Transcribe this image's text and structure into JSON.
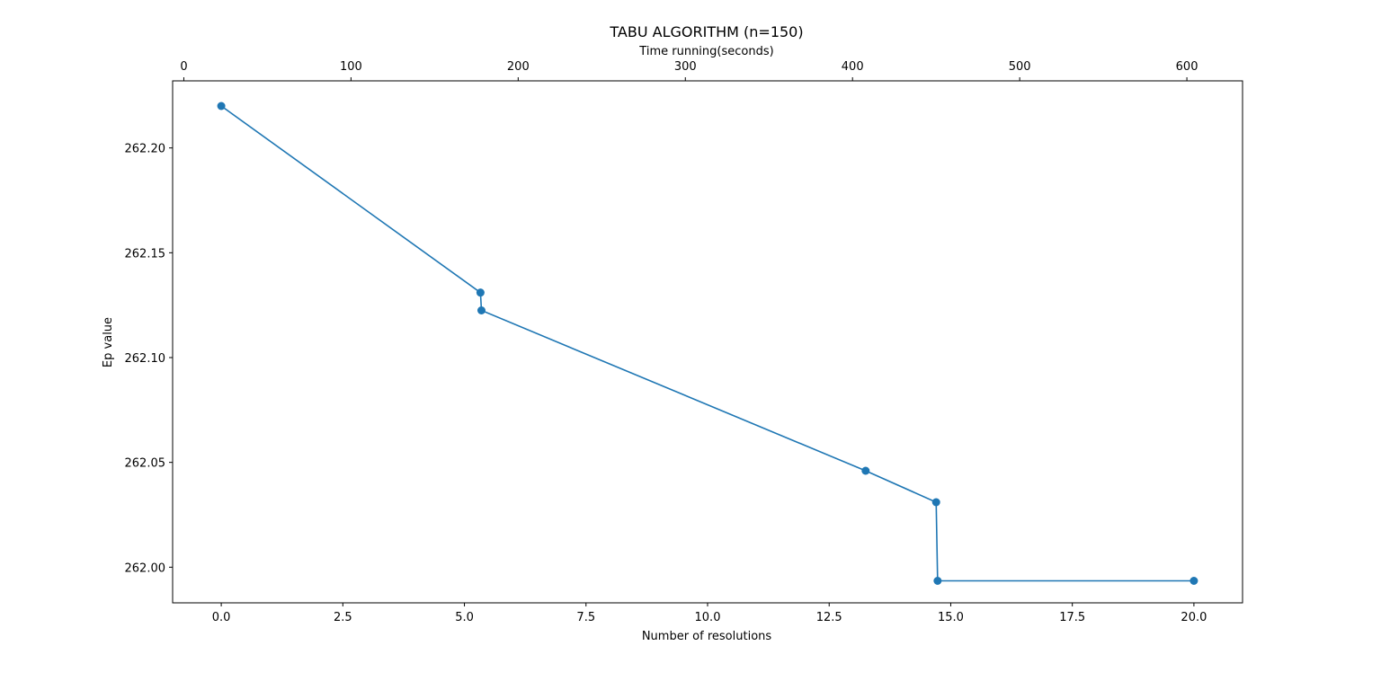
{
  "chart_data": {
    "type": "line",
    "title": "TABU ALGORITHM (n=150)",
    "xlabel": "Number of resolutions",
    "ylabel": "Ep value",
    "top_xlabel": "Time running(seconds)",
    "xlim": [
      -1,
      21
    ],
    "ylim": [
      261.983,
      262.232
    ],
    "top_xlim": [
      -6.7,
      633.3
    ],
    "x_ticks": [
      "0.0",
      "2.5",
      "5.0",
      "7.5",
      "10.0",
      "12.5",
      "15.0",
      "17.5",
      "20.0"
    ],
    "x_tick_values": [
      0,
      2.5,
      5,
      7.5,
      10,
      12.5,
      15,
      17.5,
      20
    ],
    "top_x_ticks": [
      "0",
      "100",
      "200",
      "300",
      "400",
      "500",
      "600"
    ],
    "top_x_tick_values": [
      0,
      100,
      200,
      300,
      400,
      500,
      600
    ],
    "y_ticks": [
      "262.00",
      "262.05",
      "262.10",
      "262.15",
      "262.20"
    ],
    "y_tick_values": [
      262.0,
      262.05,
      262.1,
      262.15,
      262.2
    ],
    "grid": false,
    "series": [
      {
        "x": [
          0,
          5.33,
          5.35,
          13.25,
          14.7,
          14.73,
          20.0
        ],
        "y": [
          262.22,
          262.131,
          262.1225,
          262.046,
          262.031,
          261.9935,
          261.9935
        ],
        "color": "#1f77b4",
        "marker": "circle"
      }
    ]
  }
}
